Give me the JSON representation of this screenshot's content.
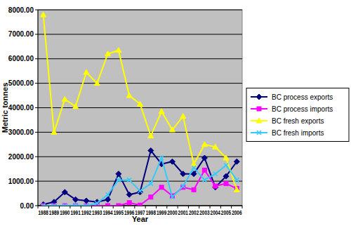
{
  "chart_data": {
    "type": "line",
    "x_label": "Year",
    "y_label": "Metric tonnes",
    "categories": [
      "1988",
      "1989",
      "1990",
      "1991",
      "1992",
      "1993",
      "1994",
      "1995",
      "1996",
      "1997",
      "1998",
      "1999",
      "2000",
      "2001",
      "2002",
      "2003",
      "2004",
      "2005",
      "2006"
    ],
    "series": [
      {
        "name": "BC process exports",
        "color": "#000080",
        "marker": "diamond",
        "values": [
          50,
          150,
          550,
          250,
          200,
          150,
          250,
          1300,
          450,
          550,
          2250,
          1700,
          1800,
          1300,
          1300,
          1950,
          750,
          1200,
          1800
        ]
      },
      {
        "name": "BC process imports",
        "color": "#ff00ff",
        "marker": "square",
        "values": [
          0,
          0,
          0,
          0,
          0,
          0,
          0,
          0,
          120,
          20,
          350,
          750,
          400,
          750,
          650,
          1450,
          800,
          900,
          700
        ]
      },
      {
        "name": "BC fresh exports",
        "color": "#ffff00",
        "marker": "triangle",
        "values": [
          7800,
          3000,
          4350,
          4050,
          5450,
          5000,
          6200,
          6350,
          4500,
          4150,
          2850,
          3850,
          3100,
          3650,
          1700,
          2500,
          2400,
          1950,
          650
        ]
      },
      {
        "name": "BC fresh imports",
        "color": "#33ccff",
        "marker": "x",
        "values": [
          0,
          0,
          0,
          20,
          0,
          100,
          450,
          1050,
          1050,
          600,
          900,
          1950,
          350,
          800,
          1550,
          1050,
          1300,
          1650,
          1050
        ]
      }
    ],
    "ylim": [
      0,
      8000
    ],
    "yticks": [
      {
        "value": 0,
        "label": "0.00"
      },
      {
        "value": 1000,
        "label": "1000.00"
      },
      {
        "value": 2000,
        "label": "2000.00"
      },
      {
        "value": 3000,
        "label": "3000.00"
      },
      {
        "value": 4000,
        "label": "4000.00"
      },
      {
        "value": 5000,
        "label": "5000.00"
      },
      {
        "value": 6000,
        "label": "6000.00"
      },
      {
        "value": 7000,
        "label": "7000.00"
      },
      {
        "value": 8000,
        "label": "8000.00"
      }
    ],
    "grid": true,
    "legend": "right"
  }
}
